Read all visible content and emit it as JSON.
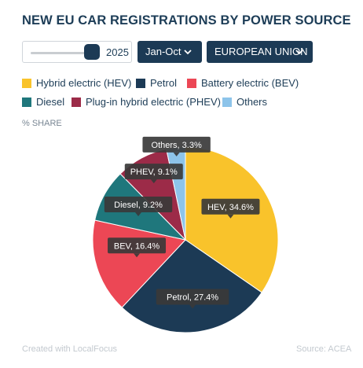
{
  "title": "NEW EU CAR REGISTRATIONS BY POWER SOURCE",
  "controls": {
    "year": "2025",
    "period": "Jan-Oct",
    "region": "EUROPEAN UNION"
  },
  "unit_label": "% SHARE",
  "footer": {
    "credit": "Created with LocalFocus",
    "source": "Source: ACEA"
  },
  "chart_data": {
    "type": "pie",
    "title": "NEW EU CAR REGISTRATIONS BY POWER SOURCE",
    "legend_position": "top",
    "slices": [
      {
        "name": "Hybrid electric (HEV)",
        "short": "HEV",
        "value": 34.6,
        "color": "#f9c32b",
        "label": "HEV, 34.6%"
      },
      {
        "name": "Petrol",
        "short": "Petrol",
        "value": 27.4,
        "color": "#1c3a55",
        "label": "Petrol, 27.4%"
      },
      {
        "name": "Battery electric (BEV)",
        "short": "BEV",
        "value": 16.4,
        "color": "#ec4755",
        "label": "BEV, 16.4%"
      },
      {
        "name": "Diesel",
        "short": "Diesel",
        "value": 9.2,
        "color": "#1f777c",
        "label": "Diesel, 9.2%"
      },
      {
        "name": "Plug-in hybrid electric (PHEV)",
        "short": "PHEV",
        "value": 9.1,
        "color": "#9c2b48",
        "label": "PHEV, 9.1%"
      },
      {
        "name": "Others",
        "short": "Others",
        "value": 3.3,
        "color": "#8dc4ea",
        "label": "Others, 3.3%"
      }
    ]
  }
}
